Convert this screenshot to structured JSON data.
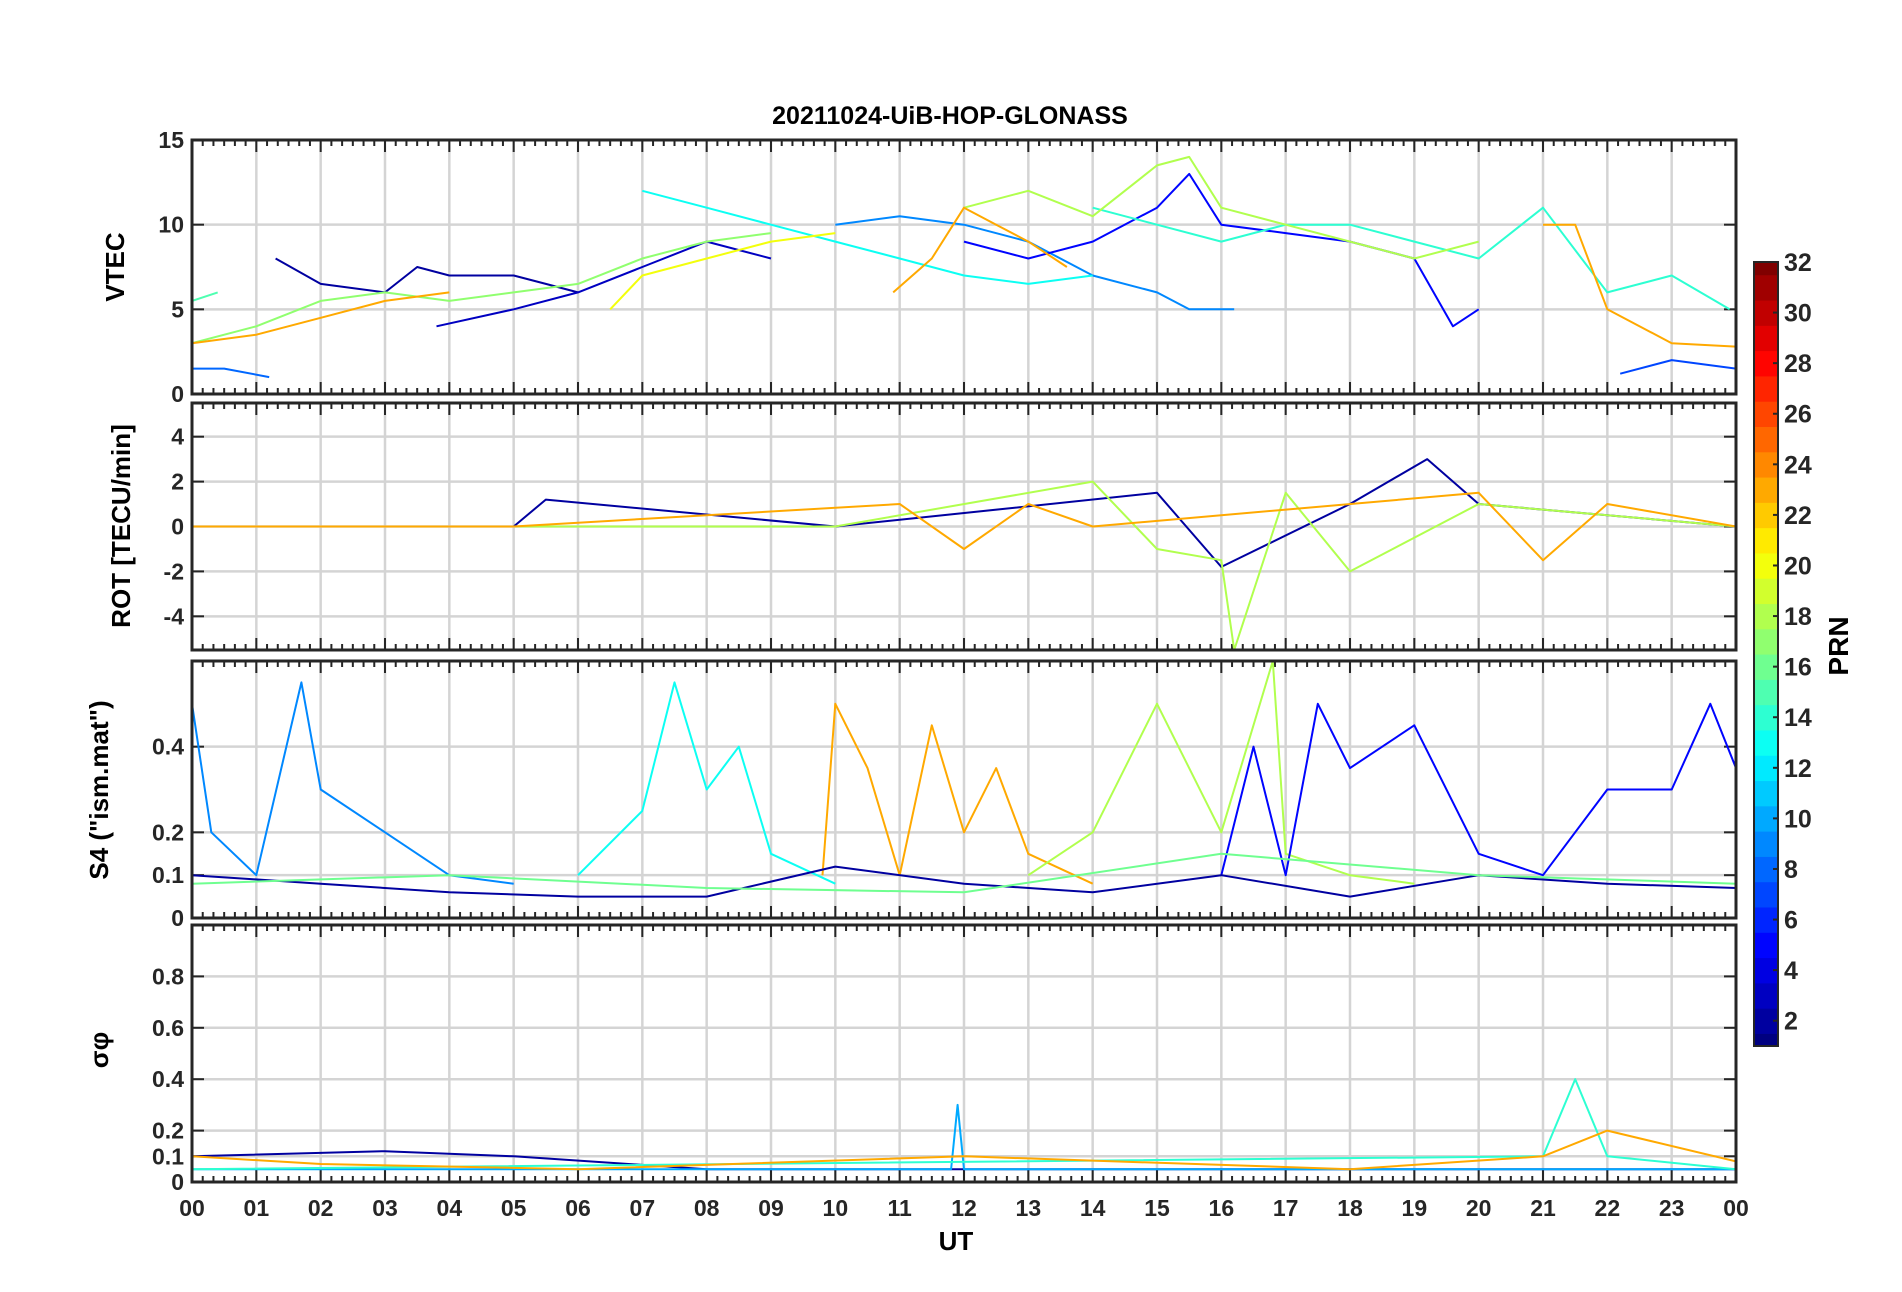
{
  "figure": {
    "title": "20211024-UiB-HOP-GLONASS",
    "xlabel": "UT",
    "x_ticks": [
      "00",
      "01",
      "02",
      "03",
      "04",
      "05",
      "06",
      "07",
      "08",
      "09",
      "10",
      "11",
      "12",
      "13",
      "14",
      "15",
      "16",
      "17",
      "18",
      "19",
      "20",
      "21",
      "22",
      "23",
      "00"
    ]
  },
  "colorbar": {
    "label": "PRN",
    "range": [
      1,
      32
    ],
    "colormap": "jet",
    "ticks": [
      2,
      4,
      6,
      8,
      10,
      12,
      14,
      16,
      18,
      20,
      22,
      24,
      26,
      28,
      30,
      32
    ]
  },
  "chart_data": [
    {
      "type": "line",
      "panel": "vtec",
      "ylabel": "VTEC",
      "ylim": [
        0,
        15
      ],
      "yticks": [
        0,
        5,
        10,
        15
      ],
      "xlim": [
        0,
        24
      ],
      "grid": true,
      "series": [
        {
          "prn": 2,
          "x": [
            1.3,
            2,
            3,
            3.5,
            4,
            5,
            5.5,
            6
          ],
          "y": [
            8,
            6.5,
            6,
            7.5,
            7,
            7,
            6.5,
            6
          ]
        },
        {
          "prn": 3,
          "x": [
            3.8,
            5,
            6,
            7,
            8,
            9
          ],
          "y": [
            4,
            5,
            6,
            7.5,
            9,
            8
          ]
        },
        {
          "prn": 9,
          "x": [
            10,
            11,
            12,
            13,
            14,
            15,
            15.5,
            16.2
          ],
          "y": [
            10,
            10.5,
            10,
            9,
            7,
            6,
            5,
            5
          ]
        },
        {
          "prn": 5,
          "x": [
            12,
            13,
            14,
            15,
            15.5,
            16,
            17,
            18,
            19,
            19.6,
            20
          ],
          "y": [
            9,
            8,
            9,
            11,
            13,
            10,
            9.5,
            9,
            8,
            4,
            5
          ]
        },
        {
          "prn": 8,
          "x": [
            0,
            0.5,
            1.2
          ],
          "y": [
            1.5,
            1.5,
            1
          ]
        },
        {
          "prn": 7,
          "x": [
            22.2,
            23,
            24
          ],
          "y": [
            1.2,
            2,
            1.5
          ]
        },
        {
          "prn": 13,
          "x": [
            7,
            8,
            9,
            10,
            11,
            12,
            13,
            14
          ],
          "y": [
            12,
            11,
            10,
            9,
            8,
            7,
            6.5,
            7
          ]
        },
        {
          "prn": 15,
          "x": [
            0,
            0.4
          ],
          "y": [
            5.5,
            6
          ]
        },
        {
          "prn": 14,
          "x": [
            14,
            15,
            16,
            17,
            18,
            19,
            20,
            21,
            22,
            23,
            23.9
          ],
          "y": [
            11,
            10,
            9,
            10,
            10,
            9,
            8,
            11,
            6,
            7,
            5
          ]
        },
        {
          "prn": 17,
          "x": [
            0,
            1,
            2,
            3,
            4,
            5,
            6,
            7,
            8,
            9
          ],
          "y": [
            3,
            4,
            5.5,
            6,
            5.5,
            6,
            6.5,
            8,
            9,
            9.5
          ]
        },
        {
          "prn": 18,
          "x": [
            12,
            13,
            14,
            15,
            15.5,
            16,
            17,
            18,
            19,
            20
          ],
          "y": [
            11,
            12,
            10.5,
            13.5,
            14,
            11,
            10,
            9,
            8,
            9
          ]
        },
        {
          "prn": 20,
          "x": [
            6.5,
            7,
            8,
            9,
            10
          ],
          "y": [
            5,
            7,
            8,
            9,
            9.5
          ]
        },
        {
          "prn": 23,
          "x": [
            0,
            1,
            2,
            3,
            4
          ],
          "y": [
            3,
            3.5,
            4.5,
            5.5,
            6
          ]
        },
        {
          "prn": 23,
          "x": [
            10.9,
            11.5,
            12,
            12.5,
            13,
            13.6
          ],
          "y": [
            6,
            8,
            11,
            10,
            9,
            7.5
          ]
        },
        {
          "prn": 23,
          "x": [
            21,
            21.5,
            22,
            23,
            24
          ],
          "y": [
            10,
            10,
            5,
            3,
            2.8
          ]
        }
      ]
    },
    {
      "type": "line",
      "panel": "rot",
      "ylabel": "ROT [TECU/min]",
      "ylim": [
        -5.5,
        5.5
      ],
      "yticks": [
        -4,
        -2,
        0,
        2,
        4
      ],
      "xlim": [
        0,
        24
      ],
      "grid": true,
      "series": [
        {
          "prn": 2,
          "x": [
            0,
            5,
            5.5,
            10,
            15,
            16,
            18,
            19.2,
            20,
            24
          ],
          "y": [
            0,
            0,
            1.2,
            0,
            1.5,
            -1.8,
            1,
            3,
            1,
            0
          ]
        },
        {
          "prn": 18,
          "x": [
            0,
            10,
            14,
            15,
            16,
            16.2,
            17,
            18,
            20,
            24
          ],
          "y": [
            0,
            0,
            2,
            -1,
            -1.5,
            -5.5,
            1.5,
            -2,
            1,
            0
          ]
        },
        {
          "prn": 23,
          "x": [
            0,
            5,
            11,
            12,
            13,
            14,
            20,
            21,
            22,
            24
          ],
          "y": [
            0,
            0,
            1,
            -1,
            1,
            0,
            1.5,
            -1.5,
            1,
            0
          ]
        }
      ]
    },
    {
      "type": "line",
      "panel": "s4",
      "ylabel": "S4 (\"ism.mat\")",
      "ylim": [
        0,
        0.6
      ],
      "yticks": [
        0,
        0.1,
        0.2,
        0.4
      ],
      "xlim": [
        0,
        24
      ],
      "grid": true,
      "series": [
        {
          "prn": 9,
          "x": [
            0,
            0.3,
            1,
            1.7,
            2,
            3,
            4,
            5
          ],
          "y": [
            0.5,
            0.2,
            0.1,
            0.55,
            0.3,
            0.2,
            0.1,
            0.08
          ]
        },
        {
          "prn": 13,
          "x": [
            6,
            7,
            7.5,
            8,
            8.5,
            9,
            10
          ],
          "y": [
            0.1,
            0.25,
            0.55,
            0.3,
            0.4,
            0.15,
            0.08
          ]
        },
        {
          "prn": 23,
          "x": [
            9.8,
            10,
            10.5,
            11,
            11.5,
            12,
            12.5,
            13,
            14
          ],
          "y": [
            0.1,
            0.5,
            0.35,
            0.1,
            0.45,
            0.2,
            0.35,
            0.15,
            0.08
          ]
        },
        {
          "prn": 18,
          "x": [
            13,
            14,
            15,
            16,
            16.8,
            17,
            18,
            19
          ],
          "y": [
            0.1,
            0.2,
            0.5,
            0.2,
            0.6,
            0.15,
            0.1,
            0.08
          ]
        },
        {
          "prn": 5,
          "x": [
            16,
            16.5,
            17,
            17.5,
            18,
            19,
            20,
            21,
            22,
            23,
            23.6,
            24
          ],
          "y": [
            0.1,
            0.4,
            0.1,
            0.5,
            0.35,
            0.45,
            0.15,
            0.1,
            0.3,
            0.3,
            0.5,
            0.35
          ]
        },
        {
          "prn": 2,
          "x": [
            0,
            2,
            4,
            6,
            8,
            10,
            12,
            14,
            16,
            18,
            20,
            22,
            24
          ],
          "y": [
            0.1,
            0.08,
            0.06,
            0.05,
            0.05,
            0.12,
            0.08,
            0.06,
            0.1,
            0.05,
            0.1,
            0.08,
            0.07
          ]
        },
        {
          "prn": 16,
          "x": [
            0,
            4,
            8,
            12,
            16,
            20,
            24
          ],
          "y": [
            0.08,
            0.1,
            0.07,
            0.06,
            0.15,
            0.1,
            0.08
          ]
        }
      ]
    },
    {
      "type": "line",
      "panel": "sigma_phi",
      "ylabel": "σφ",
      "ylim": [
        0,
        1
      ],
      "yticks": [
        0,
        0.1,
        0.2,
        0.4,
        0.6,
        0.8
      ],
      "xlim": [
        0,
        24
      ],
      "grid": true,
      "series": [
        {
          "prn": 2,
          "x": [
            0,
            3,
            5,
            8,
            12,
            16,
            20,
            24
          ],
          "y": [
            0.1,
            0.12,
            0.1,
            0.05,
            0.05,
            0.05,
            0.05,
            0.05
          ]
        },
        {
          "prn": 10,
          "x": [
            0,
            11.8,
            11.9,
            12,
            21.5,
            24
          ],
          "y": [
            0.05,
            0.05,
            0.3,
            0.05,
            0.05,
            0.05
          ]
        },
        {
          "prn": 14,
          "x": [
            0,
            21,
            21.5,
            22,
            24
          ],
          "y": [
            0.05,
            0.1,
            0.4,
            0.1,
            0.05
          ]
        },
        {
          "prn": 23,
          "x": [
            0,
            2,
            6,
            12,
            18,
            21,
            22,
            24
          ],
          "y": [
            0.1,
            0.07,
            0.05,
            0.1,
            0.05,
            0.1,
            0.2,
            0.08
          ]
        }
      ]
    }
  ]
}
